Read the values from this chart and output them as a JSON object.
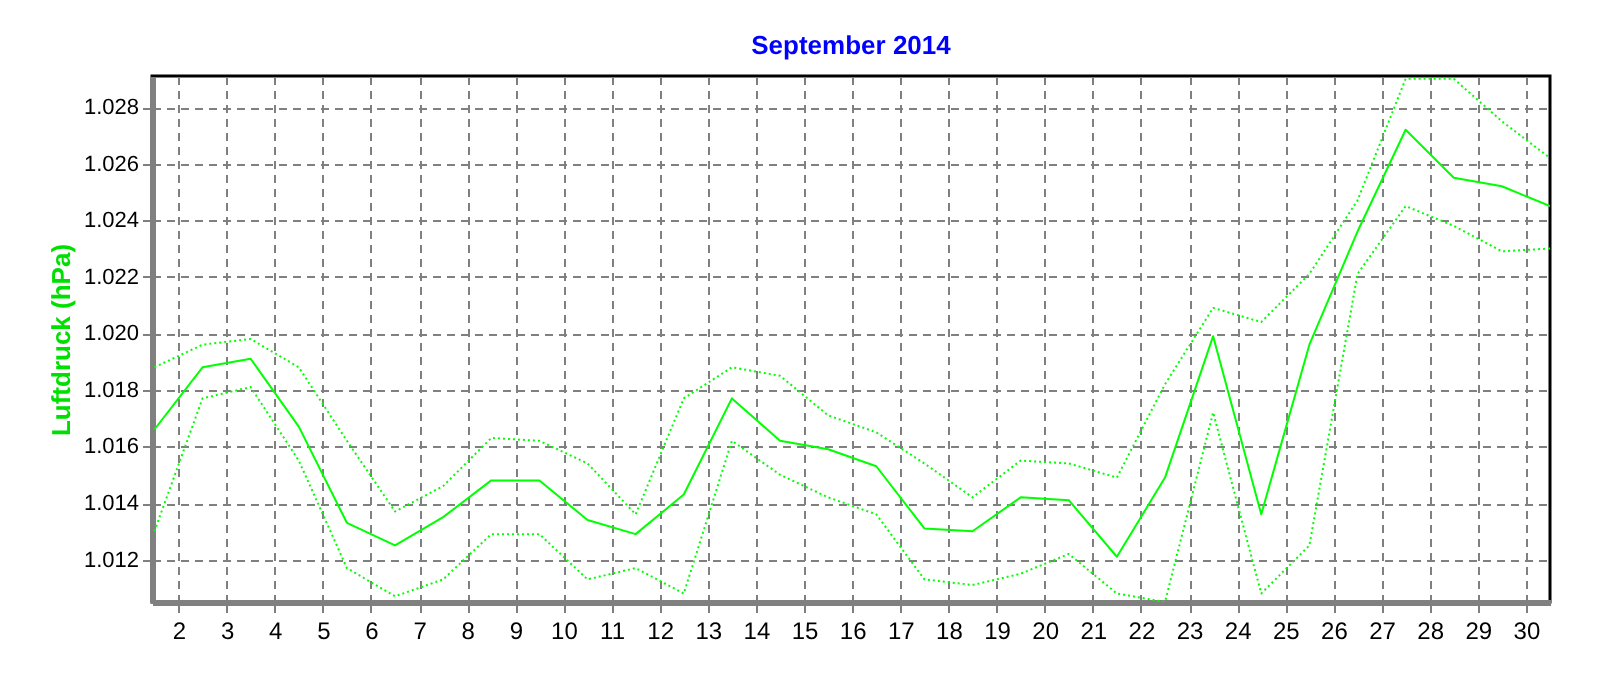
{
  "chart_data": {
    "type": "line",
    "title": "September 2014",
    "ylabel": "Luftdruck  (hPa)",
    "x": [
      1.5,
      2.5,
      3.5,
      4.5,
      5.5,
      6.5,
      7.5,
      8.5,
      9.5,
      10.5,
      11.5,
      12.5,
      13.5,
      14.5,
      15.5,
      16.5,
      17.5,
      18.5,
      19.5,
      20.5,
      21.5,
      22.5,
      23.5,
      24.5,
      25.5,
      26.5,
      27.5,
      28.5,
      29.5,
      30.5
    ],
    "series": [
      {
        "color": "#00ff00",
        "line_style": "dotted",
        "values": [
          1.0188,
          1.0196,
          1.0198,
          1.0188,
          1.0162,
          1.0137,
          1.0146,
          1.0163,
          1.0162,
          1.0154,
          1.0136,
          1.0177,
          1.0188,
          1.0185,
          1.0171,
          1.0165,
          1.0154,
          1.0142,
          1.0155,
          1.0154,
          1.0149,
          1.0182,
          1.0209,
          1.0204,
          1.0221,
          1.0247,
          1.029,
          1.029,
          1.0275,
          1.0262
        ]
      },
      {
        "color": "#00ff00",
        "line_style": "solid",
        "values": [
          1.0166,
          1.0188,
          1.0191,
          1.0167,
          1.0133,
          1.0125,
          1.0135,
          1.0148,
          1.0148,
          1.0134,
          1.0129,
          1.0143,
          1.0177,
          1.0162,
          1.0159,
          1.0153,
          1.0131,
          1.013,
          1.0142,
          1.0141,
          1.0121,
          1.0149,
          1.0199,
          1.0136,
          1.0196,
          1.0236,
          1.0272,
          1.0255,
          1.0252,
          1.0245
        ]
      },
      {
        "color": "#00ff00",
        "line_style": "dotted",
        "values": [
          1.013,
          1.0177,
          1.0181,
          1.0155,
          1.0117,
          1.0107,
          1.0113,
          1.0129,
          1.0129,
          1.0113,
          1.0117,
          1.0108,
          1.0162,
          1.015,
          1.0142,
          1.0136,
          1.0113,
          1.0111,
          1.0115,
          1.0122,
          1.0108,
          1.0105,
          1.0172,
          1.0108,
          1.0125,
          1.0221,
          1.0245,
          1.0238,
          1.0229,
          1.023
        ]
      }
    ],
    "xlim": [
      1.45,
      30.5
    ],
    "xticks": [
      2,
      3,
      4,
      5,
      6,
      7,
      8,
      9,
      10,
      11,
      12,
      13,
      14,
      15,
      16,
      17,
      18,
      19,
      20,
      21,
      22,
      23,
      24,
      25,
      26,
      27,
      28,
      29,
      30
    ],
    "ylim": [
      1.0105,
      1.0291
    ],
    "yticks": [
      1.012,
      1.014,
      1.016,
      1.018,
      {
        "value": 1.02,
        "label": "1.020"
      },
      1.022,
      1.024,
      1.026,
      1.028
    ],
    "grid": true,
    "marker": "none"
  }
}
